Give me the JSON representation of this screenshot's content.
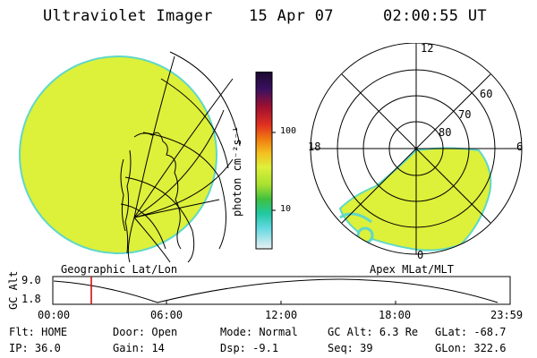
{
  "header": {
    "instrument": "Ultraviolet Imager",
    "date": "15 Apr 07",
    "time": "02:00:55 UT"
  },
  "colorbar": {
    "label": "photon cm⁻²s⁻¹",
    "ticks": [
      "100",
      "10"
    ]
  },
  "polar_plot": {
    "mlt_labels": {
      "top": "12",
      "left": "18",
      "right": "6",
      "bottom": "0"
    },
    "lat_labels": [
      "60",
      "70",
      "80"
    ]
  },
  "map_labels": {
    "left": "Geographic Lat/Lon",
    "right": "Apex MLat/MLT"
  },
  "timeline": {
    "ylabel": "GC Alt",
    "y_ticks": [
      "9.0",
      "1.8"
    ],
    "x_ticks": [
      "00:00",
      "06:00",
      "12:00",
      "18:00",
      "23:59"
    ]
  },
  "info": {
    "row1": [
      {
        "label": "Flt:",
        "value": "HOME"
      },
      {
        "label": "Door:",
        "value": "Open"
      },
      {
        "label": "Mode:",
        "value": "Normal"
      },
      {
        "label": "GC Alt:",
        "value": "6.3 Re"
      },
      {
        "label": "GLat:",
        "value": "-68.7"
      }
    ],
    "row2": [
      {
        "label": "IP:",
        "value": "36.0"
      },
      {
        "label": "Gain:",
        "value": "14"
      },
      {
        "label": "Dsp:",
        "value": "-9.1"
      },
      {
        "label": "Seq:",
        "value": "39"
      },
      {
        "label": "GLon:",
        "value": "322.6"
      }
    ]
  },
  "colors": {
    "aurora_fill": "#ddf03a",
    "aurora_edge": "#5fd8c8",
    "marker": "#cc0000"
  }
}
